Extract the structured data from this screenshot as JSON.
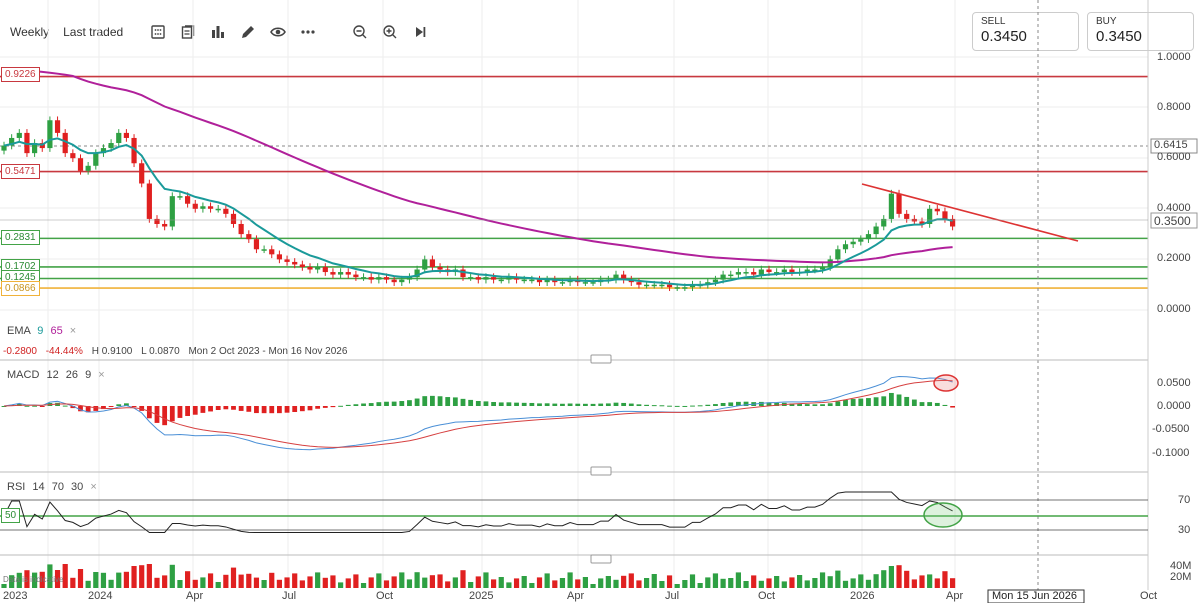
{
  "toolbar": {
    "interval": "Weekly",
    "price_type": "Last traded",
    "icons": [
      "layout-icon",
      "indicators-icon",
      "chart-type-icon",
      "draw-icon",
      "eye-icon",
      "more-icon",
      "zoom-out-icon",
      "zoom-in-icon",
      "skip-to-end-icon"
    ]
  },
  "quotes": {
    "sell_label": "SELL",
    "sell_value": "0.3450",
    "buy_label": "BUY",
    "buy_value": "0.3450"
  },
  "price_axis": {
    "ticks": [
      "1.0000",
      "0.8000",
      "0.6000",
      "0.4000",
      "0.2000",
      "0.0000"
    ],
    "marker_641": "0.6415",
    "current": "0.3500"
  },
  "levels": {
    "l1": "0.9226",
    "l2": "0.5471",
    "l3": "0.2831",
    "l4": "0.1702",
    "l5": "0.1245",
    "l6": "0.0866"
  },
  "ema": {
    "name": "EMA",
    "p1": "9",
    "p2": "65",
    "close": "×",
    "change": "-0.2800",
    "change_pct": "-44.44%",
    "high": "H 0.9100",
    "low": "L 0.0870",
    "range": "Mon 2 Oct 2023 - Mon 16 Nov 2026"
  },
  "macd": {
    "name": "MACD",
    "p1": "12",
    "p2": "26",
    "p3": "9",
    "close": "×",
    "ticks": [
      "0.0500",
      "0.0000",
      "-0.0500",
      "-0.1000"
    ]
  },
  "rsi": {
    "name": "RSI",
    "p1": "14",
    "p2": "70",
    "p3": "30",
    "close": "×",
    "level_50": "50",
    "ticks": [
      "70",
      "30"
    ]
  },
  "volume": {
    "ticks": [
      "40M",
      "20M"
    ],
    "disclaimer": "Data is indicative"
  },
  "time_axis": {
    "labels": [
      "2023",
      "2024",
      "Apr",
      "Jul",
      "Oct",
      "2025",
      "Apr",
      "Jul",
      "Oct",
      "2026",
      "Apr",
      "Oct"
    ],
    "crosshair": "Mon 15 Jun 2026"
  },
  "colors": {
    "up": "#2ea043",
    "down": "#e02020",
    "ema_fast": "#1a9a9a",
    "ema_slow": "#b0209a",
    "resistance": "#c8383f",
    "support": "#43a347",
    "low_band": "#f0b23a"
  },
  "chart_data": {
    "type": "candlestick",
    "interval": "weekly",
    "ylim": [
      0,
      1.0
    ],
    "horizontal_levels": [
      0.9226,
      0.5471,
      0.2831,
      0.1702,
      0.1245,
      0.0866
    ],
    "close_series": [
      0.65,
      0.68,
      0.7,
      0.62,
      0.66,
      0.64,
      0.75,
      0.7,
      0.62,
      0.6,
      0.55,
      0.57,
      0.62,
      0.64,
      0.66,
      0.7,
      0.68,
      0.58,
      0.5,
      0.36,
      0.34,
      0.33,
      0.45,
      0.45,
      0.42,
      0.4,
      0.41,
      0.4,
      0.4,
      0.38,
      0.34,
      0.3,
      0.28,
      0.24,
      0.24,
      0.22,
      0.2,
      0.19,
      0.18,
      0.17,
      0.16,
      0.17,
      0.15,
      0.14,
      0.15,
      0.14,
      0.13,
      0.13,
      0.12,
      0.13,
      0.12,
      0.11,
      0.12,
      0.13,
      0.16,
      0.2,
      0.17,
      0.16,
      0.15,
      0.16,
      0.13,
      0.13,
      0.12,
      0.13,
      0.12,
      0.12,
      0.13,
      0.12,
      0.12,
      0.12,
      0.11,
      0.12,
      0.11,
      0.11,
      0.12,
      0.11,
      0.11,
      0.11,
      0.12,
      0.12,
      0.14,
      0.12,
      0.11,
      0.1,
      0.1,
      0.1,
      0.1,
      0.09,
      0.09,
      0.09,
      0.1,
      0.1,
      0.11,
      0.12,
      0.14,
      0.14,
      0.15,
      0.15,
      0.14,
      0.16,
      0.15,
      0.15,
      0.16,
      0.15,
      0.15,
      0.16,
      0.16,
      0.17,
      0.2,
      0.24,
      0.26,
      0.27,
      0.28,
      0.3,
      0.33,
      0.36,
      0.46,
      0.38,
      0.36,
      0.35,
      0.34,
      0.4,
      0.39,
      0.36,
      0.33
    ],
    "ema_fast_label": "EMA 9",
    "ema_slow_label": "EMA 65",
    "current_price": 0.35
  }
}
